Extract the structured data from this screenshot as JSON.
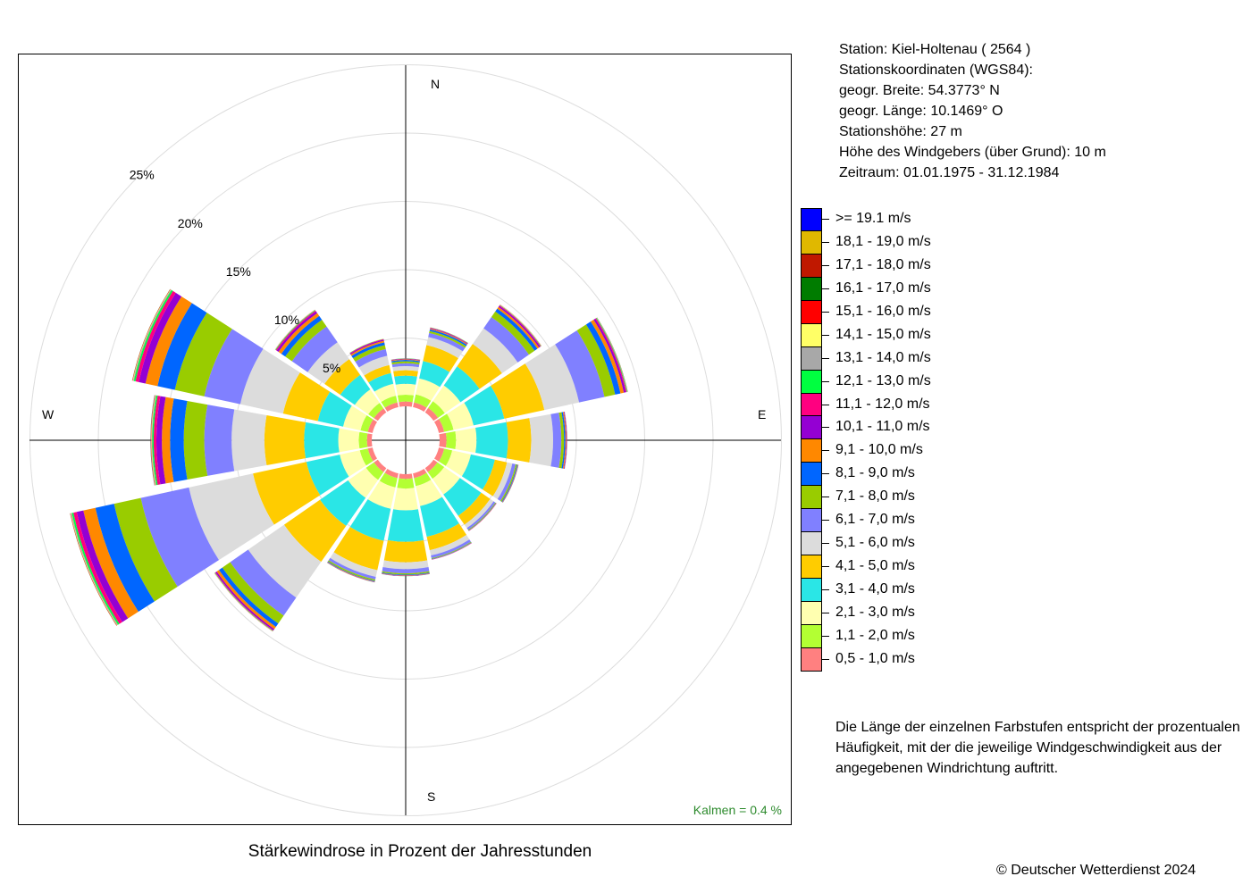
{
  "station": {
    "lines": [
      "Station:  Kiel-Holtenau  ( 2564 )",
      "Stationskoordinaten (WGS84):",
      "geogr. Breite: 54.3773° N",
      "geogr. Länge: 10.1469° O",
      "Stationshöhe: 27 m",
      "Höhe des Windgebers (über Grund): 10 m",
      "Zeitraum: 01.01.1975 - 31.12.1984"
    ]
  },
  "legend": {
    "items": [
      {
        "label": ">= 19.1 m/s",
        "color": "#0000ff"
      },
      {
        "label": "18,1 - 19,0 m/s",
        "color": "#e0b800"
      },
      {
        "label": "17,1 - 18,0 m/s",
        "color": "#c01800"
      },
      {
        "label": "16,1 - 17,0 m/s",
        "color": "#007c00"
      },
      {
        "label": "15,1 - 16,0 m/s",
        "color": "#ff0000"
      },
      {
        "label": "14,1 - 15,0 m/s",
        "color": "#ffff66"
      },
      {
        "label": "13,1 - 14,0 m/s",
        "color": "#a8a8a8"
      },
      {
        "label": "12,1 - 13,0 m/s",
        "color": "#00ff40"
      },
      {
        "label": "11,1 - 12,0 m/s",
        "color": "#ff0080"
      },
      {
        "label": "10,1 - 11,0 m/s",
        "color": "#9400d3"
      },
      {
        "label": "9,1 - 10,0 m/s",
        "color": "#ff8800"
      },
      {
        "label": "8,1 - 9,0 m/s",
        "color": "#0066ff"
      },
      {
        "label": "7,1 - 8,0 m/s",
        "color": "#99cc00"
      },
      {
        "label": "6,1 - 7,0 m/s",
        "color": "#8080ff"
      },
      {
        "label": "5,1 - 6,0 m/s",
        "color": "#dcdcdc"
      },
      {
        "label": "4,1 - 5,0 m/s",
        "color": "#ffcc00"
      },
      {
        "label": "3,1 - 4,0 m/s",
        "color": "#2ae6e6"
      },
      {
        "label": "2,1 - 3,0 m/s",
        "color": "#ffffb0"
      },
      {
        "label": "1,1 - 2,0 m/s",
        "color": "#b3ff33"
      },
      {
        "label": "0,5 - 1,0 m/s",
        "color": "#ff8080"
      }
    ]
  },
  "note": {
    "lines": [
      "Die Länge der einzelnen Farbstufen entspricht der prozentualen",
      "Häufigkeit, mit der die jeweilige Windgeschwindigkeit aus der",
      "angegebenen Windrichtung auftritt."
    ]
  },
  "chart_title": "Stärkewindrose in Prozent der Jahresstunden",
  "calm": "Kalmen  =  0.4 %",
  "copyright": "© Deutscher Wetterdienst  2024",
  "colors": {
    "grid": "#dddddd",
    "axis": "#000000",
    "calm_text": "#2e8b2e"
  },
  "chart_data": {
    "type": "windrose",
    "unit": "%",
    "directions": [
      "N",
      "NNE",
      "NE",
      "ENE",
      "E",
      "ESE",
      "SE",
      "SSE",
      "S",
      "SSW",
      "SW",
      "WSW",
      "W",
      "WNW",
      "NW",
      "NNW"
    ],
    "direction_labels": {
      "N": "N",
      "E": "E",
      "S": "S",
      "W": "W"
    },
    "ring_labels": [
      "5%",
      "10%",
      "15%",
      "20%",
      "25%"
    ],
    "ring_values": [
      5,
      10,
      15,
      20,
      25
    ],
    "calm_percent": 0.4,
    "grid": true,
    "series": [
      {
        "name": "0,5 - 1,0 m/s",
        "values": [
          0.35,
          0.35,
          0.4,
          0.4,
          0.5,
          0.4,
          0.35,
          0.35,
          0.35,
          0.35,
          0.35,
          0.35,
          0.35,
          0.35,
          0.35,
          0.35
        ]
      },
      {
        "name": "1,1 - 2,0 m/s",
        "values": [
          0.5,
          0.6,
          0.6,
          0.7,
          0.7,
          0.6,
          0.6,
          0.6,
          0.7,
          0.7,
          0.7,
          0.6,
          0.6,
          0.55,
          0.5,
          0.5
        ]
      },
      {
        "name": "2,1 - 3,0 m/s",
        "values": [
          0.8,
          1.2,
          1.4,
          1.5,
          1.5,
          1.4,
          1.4,
          1.5,
          1.6,
          1.6,
          1.6,
          1.5,
          1.5,
          1.3,
          1.2,
          0.9
        ]
      },
      {
        "name": "3,1 - 4,0 m/s",
        "values": [
          0.6,
          1.3,
          1.7,
          2.3,
          2.3,
          1.8,
          1.9,
          2.3,
          2.3,
          2.4,
          2.5,
          2.5,
          2.5,
          1.9,
          1.3,
          0.8
        ]
      },
      {
        "name": "4,1 - 5,0 m/s",
        "values": [
          0.4,
          1.2,
          2.0,
          3.0,
          1.7,
          0.9,
          0.8,
          1.0,
          1.5,
          2.2,
          3.2,
          4.0,
          2.9,
          2.6,
          1.4,
          0.6
        ]
      },
      {
        "name": "5,1 - 6,0 m/s",
        "values": [
          0.3,
          0.6,
          1.4,
          2.6,
          1.6,
          0.4,
          0.3,
          0.4,
          0.5,
          0.5,
          3.2,
          4.8,
          2.4,
          3.2,
          1.5,
          0.7
        ]
      },
      {
        "name": "6,1 - 7,0 m/s",
        "values": [
          0.2,
          0.3,
          1.0,
          1.9,
          0.6,
          0.25,
          0.15,
          0.2,
          0.3,
          0.2,
          1.6,
          3.6,
          2.0,
          2.7,
          1.4,
          0.5
        ]
      },
      {
        "name": "7,1 - 8,0 m/s",
        "values": [
          0.15,
          0.15,
          0.5,
          0.8,
          0.2,
          0.1,
          0.05,
          0.05,
          0.1,
          0.1,
          0.7,
          2.0,
          1.5,
          2.2,
          0.6,
          0.3
        ]
      },
      {
        "name": "8,1 - 9,0 m/s",
        "values": [
          0.1,
          0.12,
          0.25,
          0.4,
          0.1,
          0.05,
          0.03,
          0.03,
          0.05,
          0.05,
          0.3,
          1.4,
          1.0,
          1.3,
          0.35,
          0.2
        ]
      },
      {
        "name": "9,1 - 10,0 m/s",
        "values": [
          0.05,
          0.06,
          0.15,
          0.25,
          0.06,
          0.03,
          0.02,
          0.02,
          0.03,
          0.03,
          0.2,
          0.9,
          0.6,
          0.9,
          0.25,
          0.12
        ]
      },
      {
        "name": "10,1 - 11,0 m/s",
        "values": [
          0.03,
          0.04,
          0.1,
          0.14,
          0.04,
          0.02,
          0.01,
          0.01,
          0.02,
          0.02,
          0.1,
          0.5,
          0.4,
          0.5,
          0.15,
          0.08
        ]
      },
      {
        "name": "11,1 - 12,0 m/s",
        "values": [
          0.02,
          0.03,
          0.05,
          0.07,
          0.02,
          0.01,
          0.01,
          0.01,
          0.01,
          0.01,
          0.05,
          0.25,
          0.2,
          0.25,
          0.08,
          0.04
        ]
      },
      {
        "name": "12,1 - 13,0 m/s",
        "values": [
          0.01,
          0.02,
          0.03,
          0.04,
          0.01,
          0.01,
          0,
          0,
          0.01,
          0.01,
          0.03,
          0.12,
          0.1,
          0.12,
          0.04,
          0.02
        ]
      },
      {
        "name": "13,1 - 14,0 m/s",
        "values": [
          0.01,
          0.01,
          0.02,
          0.02,
          0.01,
          0,
          0,
          0,
          0,
          0,
          0.02,
          0.06,
          0.05,
          0.06,
          0.02,
          0.01
        ]
      },
      {
        "name": "14,1 - 15,0 m/s",
        "values": [
          0,
          0.01,
          0.01,
          0.01,
          0,
          0,
          0,
          0,
          0,
          0,
          0.01,
          0.03,
          0.03,
          0.03,
          0.01,
          0.01
        ]
      },
      {
        "name": "15,1 - 16,0 m/s",
        "values": [
          0,
          0,
          0.01,
          0.01,
          0,
          0,
          0,
          0,
          0,
          0,
          0.01,
          0.02,
          0.02,
          0.02,
          0.01,
          0
        ]
      },
      {
        "name": "16,1 - 17,0 m/s",
        "values": [
          0,
          0,
          0,
          0.01,
          0,
          0,
          0,
          0,
          0,
          0,
          0,
          0.01,
          0.01,
          0.01,
          0,
          0
        ]
      },
      {
        "name": "17,1 - 18,0 m/s",
        "values": [
          0,
          0,
          0,
          0,
          0,
          0,
          0,
          0,
          0,
          0,
          0,
          0.01,
          0.01,
          0.01,
          0,
          0
        ]
      },
      {
        "name": "18,1 - 19,0 m/s",
        "values": [
          0,
          0,
          0,
          0,
          0,
          0,
          0,
          0,
          0,
          0,
          0,
          0,
          0.01,
          0,
          0,
          0
        ]
      },
      {
        "name": ">= 19.1 m/s",
        "values": [
          0,
          0,
          0,
          0,
          0,
          0,
          0,
          0,
          0,
          0,
          0,
          0,
          0.01,
          0,
          0,
          0
        ]
      }
    ]
  }
}
